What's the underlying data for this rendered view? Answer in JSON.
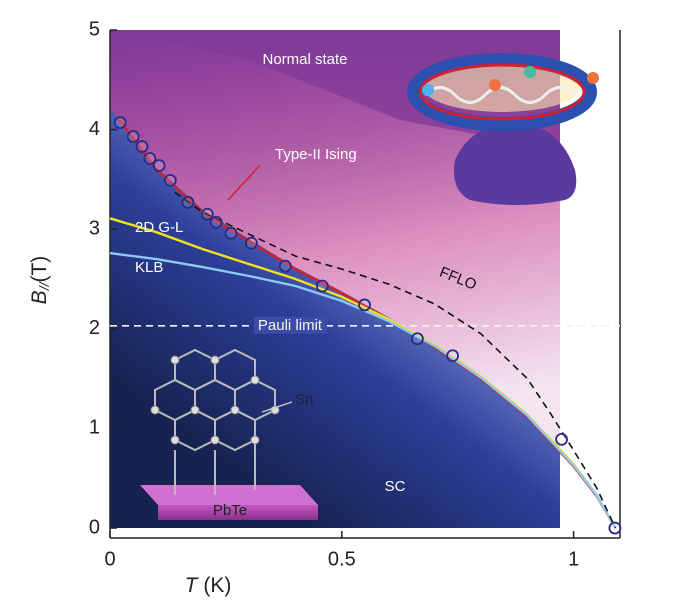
{
  "chart_data": {
    "type": "line",
    "x_label": "T",
    "x_label_unit": "(K)",
    "y_label": "B",
    "y_label_sub": "//",
    "y_label_unit": "(T)",
    "xlim": [
      0,
      1.1
    ],
    "ylim": [
      -0.1,
      5
    ],
    "xticks": [
      0,
      0.5,
      1
    ],
    "yticks": [
      0,
      1,
      2,
      3,
      4,
      5
    ],
    "series": [
      {
        "name": "Type-II Ising",
        "color": "#d3202c",
        "dashed": false,
        "x": [
          0.02,
          0.1,
          0.2,
          0.3,
          0.4,
          0.5,
          0.6,
          0.7,
          0.8,
          0.9,
          1.0,
          1.05,
          1.08,
          1.09
        ],
        "values": [
          4.1,
          3.6,
          3.17,
          2.88,
          2.6,
          2.36,
          2.1,
          1.82,
          1.5,
          1.12,
          0.62,
          0.32,
          0.08,
          0
        ]
      },
      {
        "name": "2D G-L",
        "color": "#f2e21c",
        "dashed": false,
        "x": [
          0,
          0.1,
          0.2,
          0.3,
          0.4,
          0.5,
          0.6,
          0.7,
          0.8,
          0.9,
          1.0,
          1.05,
          1.08,
          1.09
        ],
        "values": [
          3.11,
          2.97,
          2.8,
          2.65,
          2.5,
          2.32,
          2.1,
          1.84,
          1.52,
          1.14,
          0.64,
          0.33,
          0.08,
          0
        ]
      },
      {
        "name": "KLB",
        "color": "#8ccaf2",
        "dashed": false,
        "x": [
          0,
          0.1,
          0.2,
          0.3,
          0.4,
          0.5,
          0.6,
          0.7,
          0.8,
          0.9,
          1.0,
          1.05,
          1.08,
          1.09
        ],
        "values": [
          2.76,
          2.7,
          2.62,
          2.53,
          2.43,
          2.28,
          2.08,
          1.83,
          1.51,
          1.13,
          0.63,
          0.33,
          0.08,
          0
        ]
      },
      {
        "name": "FFLO",
        "color": "#111111",
        "dashed": true,
        "x": [
          0.14,
          0.2,
          0.3,
          0.4,
          0.5,
          0.6,
          0.7,
          0.8,
          0.9,
          0.95,
          1.0,
          1.05,
          1.09
        ],
        "values": [
          3.37,
          3.17,
          2.95,
          2.73,
          2.6,
          2.45,
          2.25,
          1.95,
          1.5,
          1.15,
          0.78,
          0.4,
          0
        ]
      },
      {
        "color": "#2a2a88",
        "marker": "circle",
        "x": [
          0.022,
          0.05,
          0.069,
          0.086,
          0.106,
          0.13,
          0.168,
          0.21,
          0.229,
          0.261,
          0.305,
          0.378,
          0.458,
          0.549,
          0.663,
          0.739,
          0.974,
          1.089
        ],
        "values": [
          4.07,
          3.93,
          3.83,
          3.71,
          3.64,
          3.49,
          3.27,
          3.15,
          3.07,
          2.96,
          2.86,
          2.63,
          2.43,
          2.24,
          1.9,
          1.73,
          0.89,
          0
        ]
      }
    ],
    "pauli_limit": {
      "label": "Pauli limit",
      "value": 2.03,
      "color": "#f4f4f4"
    },
    "annotations": {
      "normal": "Normal state",
      "sc": "SC",
      "sn": "Sn",
      "pbte": "PbTe"
    }
  }
}
